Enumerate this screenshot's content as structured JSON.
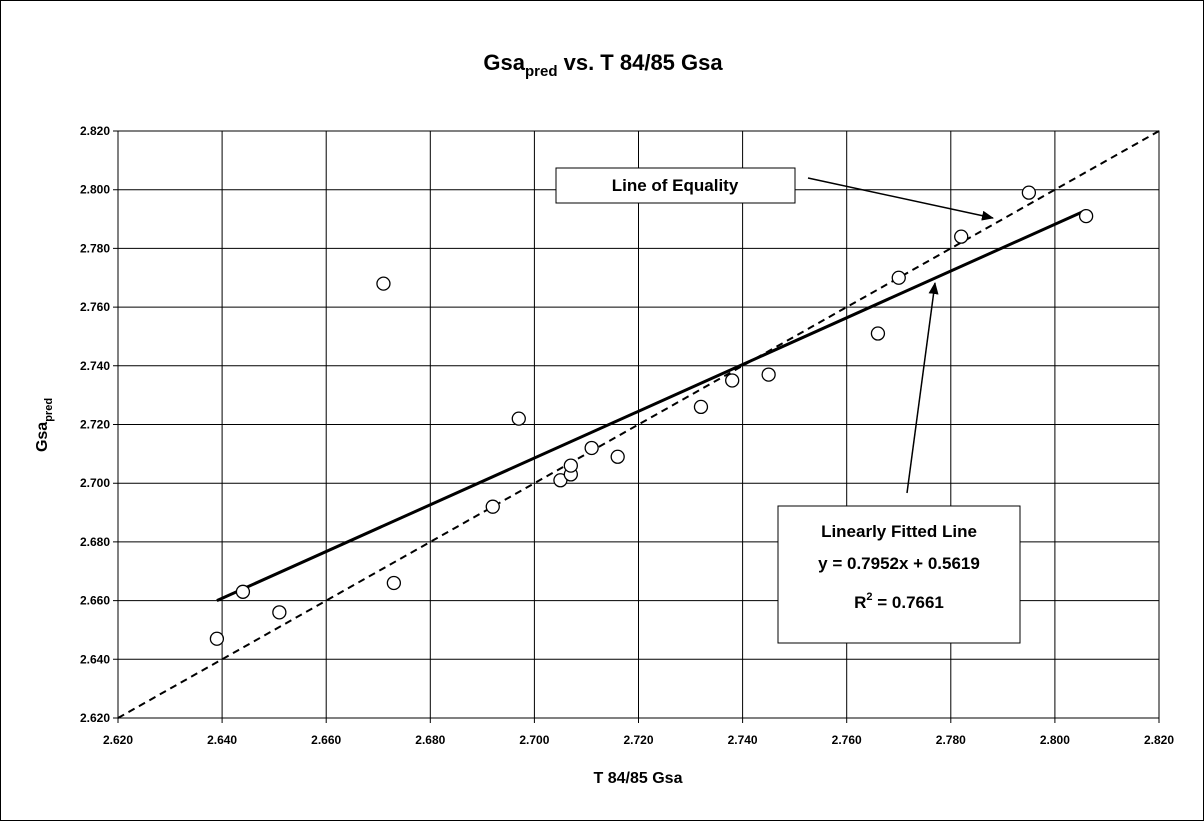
{
  "chart_data": {
    "type": "scatter",
    "title": {
      "base": "Gsa",
      "sub": "pred",
      "rest": " vs. T 84/85 Gsa"
    },
    "x_label": "T 84/85 Gsa",
    "y_label": {
      "base": "Gsa",
      "sub": "pred"
    },
    "x": [
      2.639,
      2.644,
      2.651,
      2.671,
      2.673,
      2.692,
      2.697,
      2.705,
      2.707,
      2.707,
      2.711,
      2.716,
      2.732,
      2.738,
      2.745,
      2.766,
      2.77,
      2.782,
      2.795,
      2.806
    ],
    "values": [
      2.647,
      2.663,
      2.656,
      2.768,
      2.666,
      2.692,
      2.722,
      2.701,
      2.703,
      2.706,
      2.712,
      2.709,
      2.726,
      2.735,
      2.737,
      2.751,
      2.77,
      2.784,
      2.799,
      2.791
    ],
    "lines": [
      {
        "x": [
          2.62,
          2.82
        ],
        "values": [
          2.62,
          2.82
        ],
        "dashed": true
      },
      {
        "x": [
          2.639,
          2.806
        ],
        "values": [
          2.66,
          2.793
        ],
        "dashed": false
      }
    ],
    "color": "#000000",
    "xlim": [
      2.62,
      2.82
    ],
    "ylim": [
      2.62,
      2.82
    ],
    "xticks": [
      {
        "value": 2.62,
        "label": "2.620"
      },
      {
        "value": 2.64,
        "label": "2.640"
      },
      {
        "value": 2.66,
        "label": "2.660"
      },
      {
        "value": 2.68,
        "label": "2.680"
      },
      {
        "value": 2.7,
        "label": "2.700"
      },
      {
        "value": 2.72,
        "label": "2.720"
      },
      {
        "value": 2.74,
        "label": "2.740"
      },
      {
        "value": 2.76,
        "label": "2.760"
      },
      {
        "value": 2.78,
        "label": "2.780"
      },
      {
        "value": 2.8,
        "label": "2.800"
      },
      {
        "value": 2.82,
        "label": "2.820"
      }
    ],
    "yticks": [
      {
        "value": 2.62,
        "label": "2.620"
      },
      {
        "value": 2.64,
        "label": "2.640"
      },
      {
        "value": 2.66,
        "label": "2.660"
      },
      {
        "value": 2.68,
        "label": "2.680"
      },
      {
        "value": 2.7,
        "label": "2.700"
      },
      {
        "value": 2.72,
        "label": "2.720"
      },
      {
        "value": 2.74,
        "label": "2.740"
      },
      {
        "value": 2.76,
        "label": "2.760"
      },
      {
        "value": 2.78,
        "label": "2.780"
      },
      {
        "value": 2.8,
        "label": "2.800"
      },
      {
        "value": 2.82,
        "label": "2.820"
      }
    ],
    "grid": true,
    "annotations": {
      "equality": "Line of Equality",
      "fit": [
        "Linearly Fitted Line",
        "y = 0.7952x + 0.5619"
      ],
      "r2": {
        "base": "R",
        "sup": "2",
        "rest": " = 0.7661"
      }
    }
  }
}
